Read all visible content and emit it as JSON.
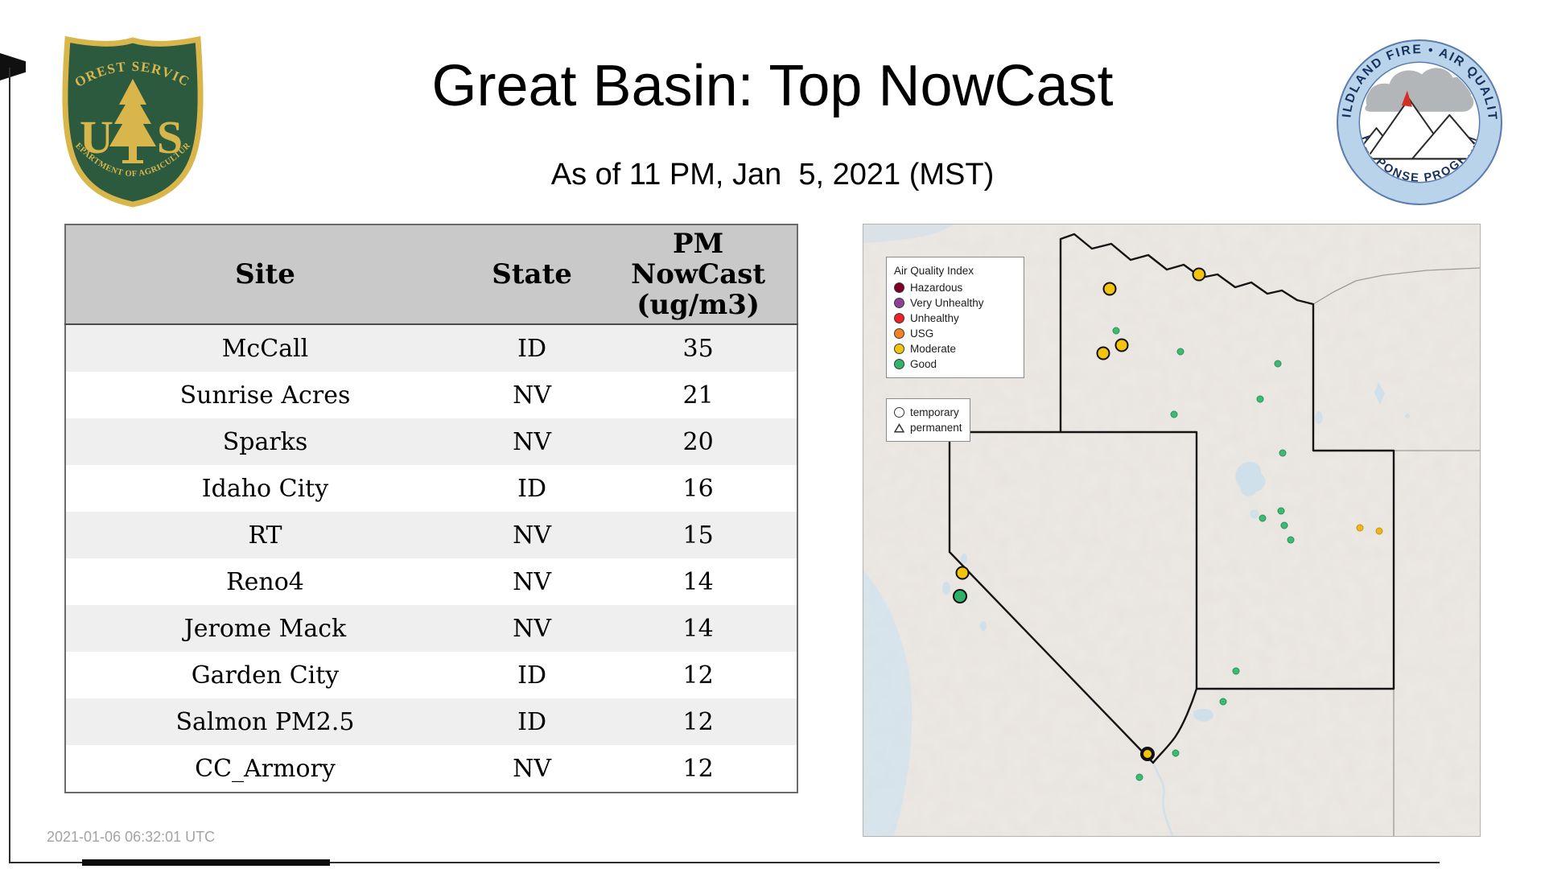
{
  "header": {
    "title": "Great Basin: Top NowCast",
    "subtitle": "As of 11 PM, Jan  5, 2021 (MST)"
  },
  "logos": {
    "usfs": {
      "arc_top": "FOREST SERVICE",
      "letter_u": "U",
      "letter_s": "S",
      "arc_bottom": "DEPARTMENT OF AGRICULTURE",
      "green": "#2c5a3f",
      "gold": "#d9b64c"
    },
    "wfaqrp": {
      "arc_top": "WILDLAND FIRE • AIR QUALITY",
      "arc_bottom": "RESPONSE PROGRAM",
      "ring_color": "#b9d3ea",
      "text_color": "#16305e"
    }
  },
  "table": {
    "columns": [
      "Site",
      "State",
      "PM\nNowCast\n(ug/m3)"
    ],
    "rows": [
      {
        "site": "McCall",
        "state": "ID",
        "value": 35
      },
      {
        "site": "Sunrise Acres",
        "state": "NV",
        "value": 21
      },
      {
        "site": "Sparks",
        "state": "NV",
        "value": 20
      },
      {
        "site": "Idaho City",
        "state": "ID",
        "value": 16
      },
      {
        "site": "RT",
        "state": "NV",
        "value": 15
      },
      {
        "site": "Reno4",
        "state": "NV",
        "value": 14
      },
      {
        "site": "Jerome Mack",
        "state": "NV",
        "value": 14
      },
      {
        "site": "Garden City",
        "state": "ID",
        "value": 12
      },
      {
        "site": "Salmon PM2.5",
        "state": "ID",
        "value": 12
      },
      {
        "site": "CC_Armory",
        "state": "NV",
        "value": 12
      }
    ]
  },
  "footer": {
    "timestamp": "2021-01-06 06:32:01 UTC"
  },
  "map": {
    "aqi_legend": {
      "title": "Air Quality Index",
      "items": [
        {
          "label": "Hazardous",
          "color": "#7e0023"
        },
        {
          "label": "Very Unhealthy",
          "color": "#8f3f97"
        },
        {
          "label": "Unhealthy",
          "color": "#ed2024"
        },
        {
          "label": "USG",
          "color": "#f58220"
        },
        {
          "label": "Moderate",
          "color": "#f2c410"
        },
        {
          "label": "Good",
          "color": "#2fb46a"
        }
      ]
    },
    "type_legend": [
      {
        "label": "temporary",
        "shape": "circle"
      },
      {
        "label": "permanent",
        "shape": "triangle"
      }
    ],
    "markers": [
      {
        "kind": "good-small",
        "x": 41.0,
        "y": 17.4,
        "size": 9,
        "color": "#3cbb72",
        "ring": 1,
        "ringColor": "#2a9158"
      },
      {
        "kind": "good-small",
        "x": 51.4,
        "y": 20.8,
        "size": 9,
        "color": "#3cbb72",
        "ring": 1,
        "ringColor": "#2a9158"
      },
      {
        "kind": "good-small",
        "x": 67.2,
        "y": 22.7,
        "size": 9,
        "color": "#3cbb72",
        "ring": 1,
        "ringColor": "#2a9158"
      },
      {
        "kind": "good-small",
        "x": 64.3,
        "y": 28.5,
        "size": 9,
        "color": "#3cbb72",
        "ring": 1,
        "ringColor": "#2a9158"
      },
      {
        "kind": "good-small",
        "x": 50.4,
        "y": 31.1,
        "size": 9,
        "color": "#3cbb72",
        "ring": 1,
        "ringColor": "#2a9158"
      },
      {
        "kind": "good-small",
        "x": 68.0,
        "y": 37.4,
        "size": 9,
        "color": "#3cbb72",
        "ring": 1,
        "ringColor": "#2a9158"
      },
      {
        "kind": "good-small",
        "x": 67.7,
        "y": 46.9,
        "size": 9,
        "color": "#3cbb72",
        "ring": 1,
        "ringColor": "#2a9158"
      },
      {
        "kind": "good-small",
        "x": 64.8,
        "y": 48.0,
        "size": 9,
        "color": "#3cbb72",
        "ring": 1,
        "ringColor": "#2a9158"
      },
      {
        "kind": "good-small",
        "x": 68.3,
        "y": 49.2,
        "size": 9,
        "color": "#3cbb72",
        "ring": 1,
        "ringColor": "#2a9158"
      },
      {
        "kind": "good-small",
        "x": 69.3,
        "y": 51.6,
        "size": 9,
        "color": "#3cbb72",
        "ring": 1,
        "ringColor": "#2a9158"
      },
      {
        "kind": "good-small",
        "x": 60.5,
        "y": 73.0,
        "size": 9,
        "color": "#3cbb72",
        "ring": 1,
        "ringColor": "#2a9158"
      },
      {
        "kind": "good-small",
        "x": 58.4,
        "y": 78.0,
        "size": 9,
        "color": "#3cbb72",
        "ring": 1,
        "ringColor": "#2a9158"
      },
      {
        "kind": "good-small",
        "x": 44.8,
        "y": 90.4,
        "size": 9,
        "color": "#3cbb72",
        "ring": 1,
        "ringColor": "#2a9158"
      },
      {
        "kind": "good-small",
        "x": 50.7,
        "y": 86.4,
        "size": 9,
        "color": "#3cbb72",
        "ring": 1,
        "ringColor": "#2a9158"
      },
      {
        "kind": "moderate-small",
        "x": 80.5,
        "y": 49.6,
        "size": 9,
        "color": "#f0b41e",
        "ring": 1,
        "ringColor": "#c69111"
      },
      {
        "kind": "moderate-small",
        "x": 83.7,
        "y": 50.1,
        "size": 9,
        "color": "#f0b41e",
        "ring": 1,
        "ringColor": "#c69111"
      },
      {
        "kind": "moderate-temporary",
        "x": 40.0,
        "y": 10.5,
        "size": 17,
        "color": "#f2c410",
        "ring": 2,
        "ringColor": "#111111"
      },
      {
        "kind": "moderate-temporary",
        "x": 54.4,
        "y": 8.2,
        "size": 17,
        "color": "#f2c410",
        "ring": 2,
        "ringColor": "#111111"
      },
      {
        "kind": "moderate-temporary",
        "x": 38.9,
        "y": 21.1,
        "size": 17,
        "color": "#f2c410",
        "ring": 2,
        "ringColor": "#111111"
      },
      {
        "kind": "moderate-temporary",
        "x": 41.9,
        "y": 19.8,
        "size": 17,
        "color": "#f2c410",
        "ring": 2,
        "ringColor": "#111111"
      },
      {
        "kind": "moderate-temporary",
        "x": 16.0,
        "y": 57.0,
        "size": 17,
        "color": "#f2c410",
        "ring": 2,
        "ringColor": "#111111"
      },
      {
        "kind": "good-temporary",
        "x": 15.7,
        "y": 60.8,
        "size": 18,
        "color": "#2fb06a",
        "ring": 2.5,
        "ringColor": "#111111"
      },
      {
        "kind": "moderate-temporary",
        "x": 46.1,
        "y": 86.6,
        "size": 18,
        "color": "#f2c410",
        "ring": 4,
        "ringColor": "#111111"
      }
    ]
  }
}
